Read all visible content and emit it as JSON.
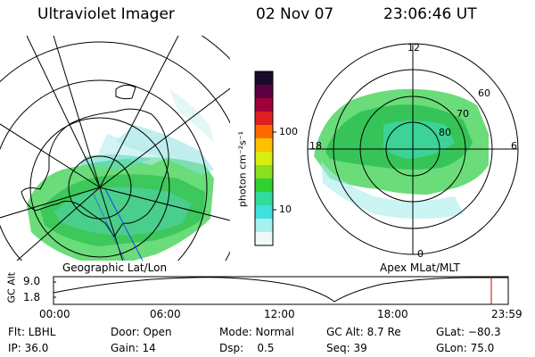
{
  "header": {
    "title": "Ultraviolet Imager",
    "date": "02 Nov 07",
    "time": "23:06:46 UT"
  },
  "geo_panel": {
    "label": "Geographic Lat/Lon"
  },
  "apex_panel": {
    "label": "Apex MLat/MLT",
    "mlt_labels": [
      "12",
      "18",
      "6",
      "0"
    ],
    "lat_labels": [
      "60",
      "70",
      "80"
    ]
  },
  "colorbar": {
    "unit": "photon cm⁻²s⁻¹",
    "ticks": [
      "100",
      "10"
    ],
    "colors": [
      "#1a0a2a",
      "#5a0040",
      "#a0003a",
      "#e02020",
      "#ff6a00",
      "#ffc000",
      "#d8ee10",
      "#88e020",
      "#30d030",
      "#30dc98",
      "#40e0e0",
      "#a8f0f0",
      "#f0f8f8"
    ]
  },
  "timeline": {
    "y_axis_label": "GC Alt",
    "y_ticks": [
      "9.0",
      "1.8"
    ],
    "x_ticks": [
      "00:00",
      "06:00",
      "12:00",
      "18:00",
      "23:59"
    ],
    "current_marker_color": "#cc0000"
  },
  "status": {
    "flt": "Flt: LBHL",
    "ip": "IP: 36.0",
    "door": "Door: Open",
    "gain": "Gain: 14",
    "mode": "Mode: Normal",
    "dsp": "Dsp:    0.5",
    "gc_alt": "GC Alt: 8.7 Re",
    "seq": "Seq: 39",
    "glat": "GLat: −80.3",
    "glon": "GLon: 75.0"
  }
}
